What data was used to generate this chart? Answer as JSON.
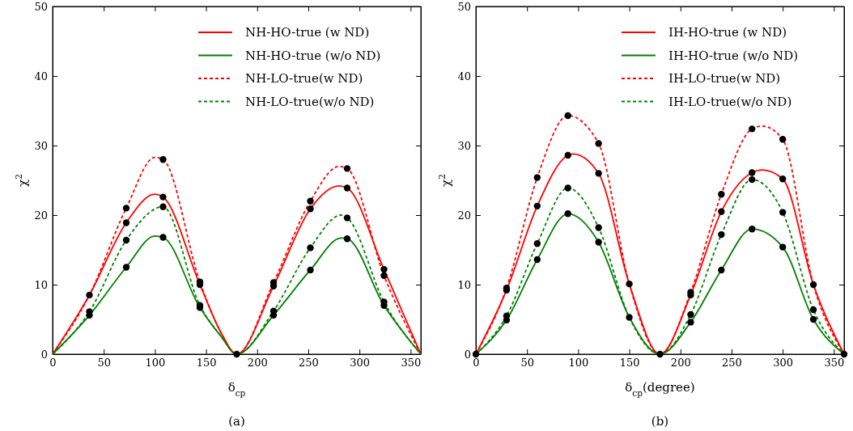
{
  "chart_data": [
    {
      "type": "line",
      "xlabel": "δ$_{cp}$",
      "ylabel": "χ$^{2}$",
      "xlim": [
        0,
        360
      ],
      "xticks": [
        0,
        50,
        100,
        150,
        200,
        250,
        300,
        350
      ],
      "ylim": [
        0,
        50
      ],
      "yticks": [
        0,
        10,
        20,
        30,
        40,
        50
      ],
      "legend": "top right",
      "annotations": [
        "(a)"
      ],
      "series": [
        {
          "name": "NH-HO-true (w ND)",
          "color": "#ff0000",
          "line_style": "solid",
          "marker": "none",
          "x": [
            0,
            36,
            72,
            100,
            108,
            144,
            165,
            180,
            216,
            252,
            280,
            288,
            324,
            360
          ],
          "values": [
            0,
            8.5,
            18.9,
            23,
            22.6,
            10,
            3,
            0,
            9.8,
            20.9,
            24.2,
            23.9,
            12.2,
            0
          ]
        },
        {
          "name": "NH-HO-true (w/o ND)",
          "color": "#008000",
          "line_style": "solid",
          "marker": "none",
          "x": [
            0,
            36,
            72,
            100,
            108,
            144,
            165,
            180,
            216,
            252,
            282,
            288,
            324,
            360
          ],
          "values": [
            0,
            5.6,
            12.5,
            17,
            16.8,
            6.7,
            2.5,
            0,
            5.6,
            12.1,
            16.7,
            16.6,
            7,
            0
          ]
        },
        {
          "name": "NH-LO-true(w ND)",
          "color": "#ff0000",
          "line_style": "dashed",
          "marker": "none",
          "x": [
            0,
            36,
            72,
            100,
            108,
            144,
            165,
            180,
            216,
            252,
            280,
            288,
            324,
            360
          ],
          "values": [
            0,
            8.5,
            21,
            28.3,
            28,
            10.4,
            3,
            0,
            10.3,
            22,
            27,
            26.7,
            11.3,
            0
          ]
        },
        {
          "name": "NH-LO-true(w/o ND)",
          "color": "#008000",
          "line_style": "dashed",
          "marker": "none",
          "x": [
            0,
            36,
            72,
            108,
            144,
            165,
            180,
            216,
            252,
            282,
            288,
            324,
            360
          ],
          "values": [
            0,
            6.1,
            16.4,
            21.2,
            7,
            2.5,
            0,
            6.2,
            15.3,
            20,
            19.6,
            7.5,
            0
          ]
        },
        {
          "type": "scatter",
          "color": "#000000",
          "marker": "circle",
          "x": [
            36,
            36,
            36,
            72,
            72,
            72,
            72,
            108,
            108,
            108,
            108,
            144,
            144,
            144,
            144,
            180,
            216,
            216,
            216,
            216,
            252,
            252,
            252,
            252,
            288,
            288,
            288,
            288,
            324,
            324,
            324,
            324
          ],
          "values": [
            8.5,
            6.1,
            5.6,
            21,
            18.9,
            16.4,
            12.5,
            28,
            22.6,
            21.2,
            16.8,
            10.4,
            10,
            7,
            6.7,
            0,
            10.3,
            9.8,
            6.2,
            5.6,
            22,
            20.9,
            15.3,
            12.1,
            26.7,
            23.9,
            19.6,
            16.6,
            12.2,
            11.3,
            7.5,
            7
          ]
        }
      ]
    },
    {
      "type": "line",
      "xlabel": "δ$_{cp}$(degree)",
      "ylabel": "χ$^{2}$",
      "xlim": [
        0,
        360
      ],
      "xticks": [
        0,
        50,
        100,
        150,
        200,
        250,
        300,
        350
      ],
      "ylim": [
        0,
        50
      ],
      "yticks": [
        0,
        10,
        20,
        30,
        40,
        50
      ],
      "legend": "top right",
      "annotations": [
        "(b)"
      ],
      "series": [
        {
          "name": "IH-HO-true (w ND)",
          "color": "#ff0000",
          "line_style": "solid",
          "marker": "none",
          "x": [
            0,
            30,
            60,
            90,
            95,
            120,
            150,
            180,
            210,
            240,
            270,
            280,
            300,
            330,
            360
          ],
          "values": [
            0,
            9.2,
            21.3,
            28.6,
            28.8,
            26,
            10.1,
            0,
            8.5,
            20.5,
            26.1,
            26.5,
            25.2,
            10,
            0
          ]
        },
        {
          "name": "IH-HO-true (w/o ND)",
          "color": "#008000",
          "line_style": "solid",
          "marker": "none",
          "x": [
            0,
            30,
            60,
            90,
            120,
            150,
            180,
            210,
            240,
            270,
            300,
            330,
            360
          ],
          "values": [
            0,
            4.9,
            13.6,
            20.2,
            16.1,
            5.3,
            0,
            4.6,
            12.1,
            18,
            15.4,
            5,
            0
          ]
        },
        {
          "name": "IH-LO-true(w ND)",
          "color": "#ff0000",
          "line_style": "dashed",
          "marker": "none",
          "x": [
            0,
            30,
            60,
            90,
            120,
            150,
            180,
            210,
            240,
            270,
            280,
            300,
            330,
            360
          ],
          "values": [
            0,
            9.5,
            25.4,
            34.3,
            30.3,
            10.1,
            0,
            8.9,
            23,
            32.4,
            32.8,
            30.9,
            10,
            0
          ]
        },
        {
          "name": "IH-LO-true(w/o ND)",
          "color": "#008000",
          "line_style": "dashed",
          "marker": "none",
          "x": [
            0,
            30,
            60,
            90,
            120,
            150,
            180,
            210,
            240,
            270,
            300,
            330,
            360
          ],
          "values": [
            0,
            5.5,
            15.9,
            23.9,
            18.2,
            5.3,
            0,
            5.7,
            17.2,
            25.1,
            20.4,
            6.4,
            0
          ]
        },
        {
          "type": "scatter",
          "color": "#000000",
          "marker": "circle",
          "x": [
            0,
            30,
            30,
            30,
            30,
            60,
            60,
            60,
            60,
            90,
            90,
            90,
            90,
            120,
            120,
            120,
            120,
            150,
            150,
            180,
            210,
            210,
            210,
            210,
            240,
            240,
            240,
            240,
            270,
            270,
            270,
            270,
            300,
            300,
            300,
            300,
            330,
            330,
            330,
            360
          ],
          "values": [
            0,
            9.5,
            9.2,
            5.5,
            4.9,
            25.4,
            21.3,
            15.9,
            13.6,
            34.3,
            28.6,
            23.9,
            20.2,
            30.3,
            26,
            18.2,
            16.1,
            10.1,
            5.3,
            0,
            8.9,
            8.5,
            5.7,
            4.6,
            23,
            20.5,
            17.2,
            12.1,
            32.4,
            26.1,
            25.1,
            18,
            30.9,
            25.2,
            20.4,
            15.4,
            10,
            6.4,
            5,
            0
          ]
        }
      ]
    }
  ]
}
